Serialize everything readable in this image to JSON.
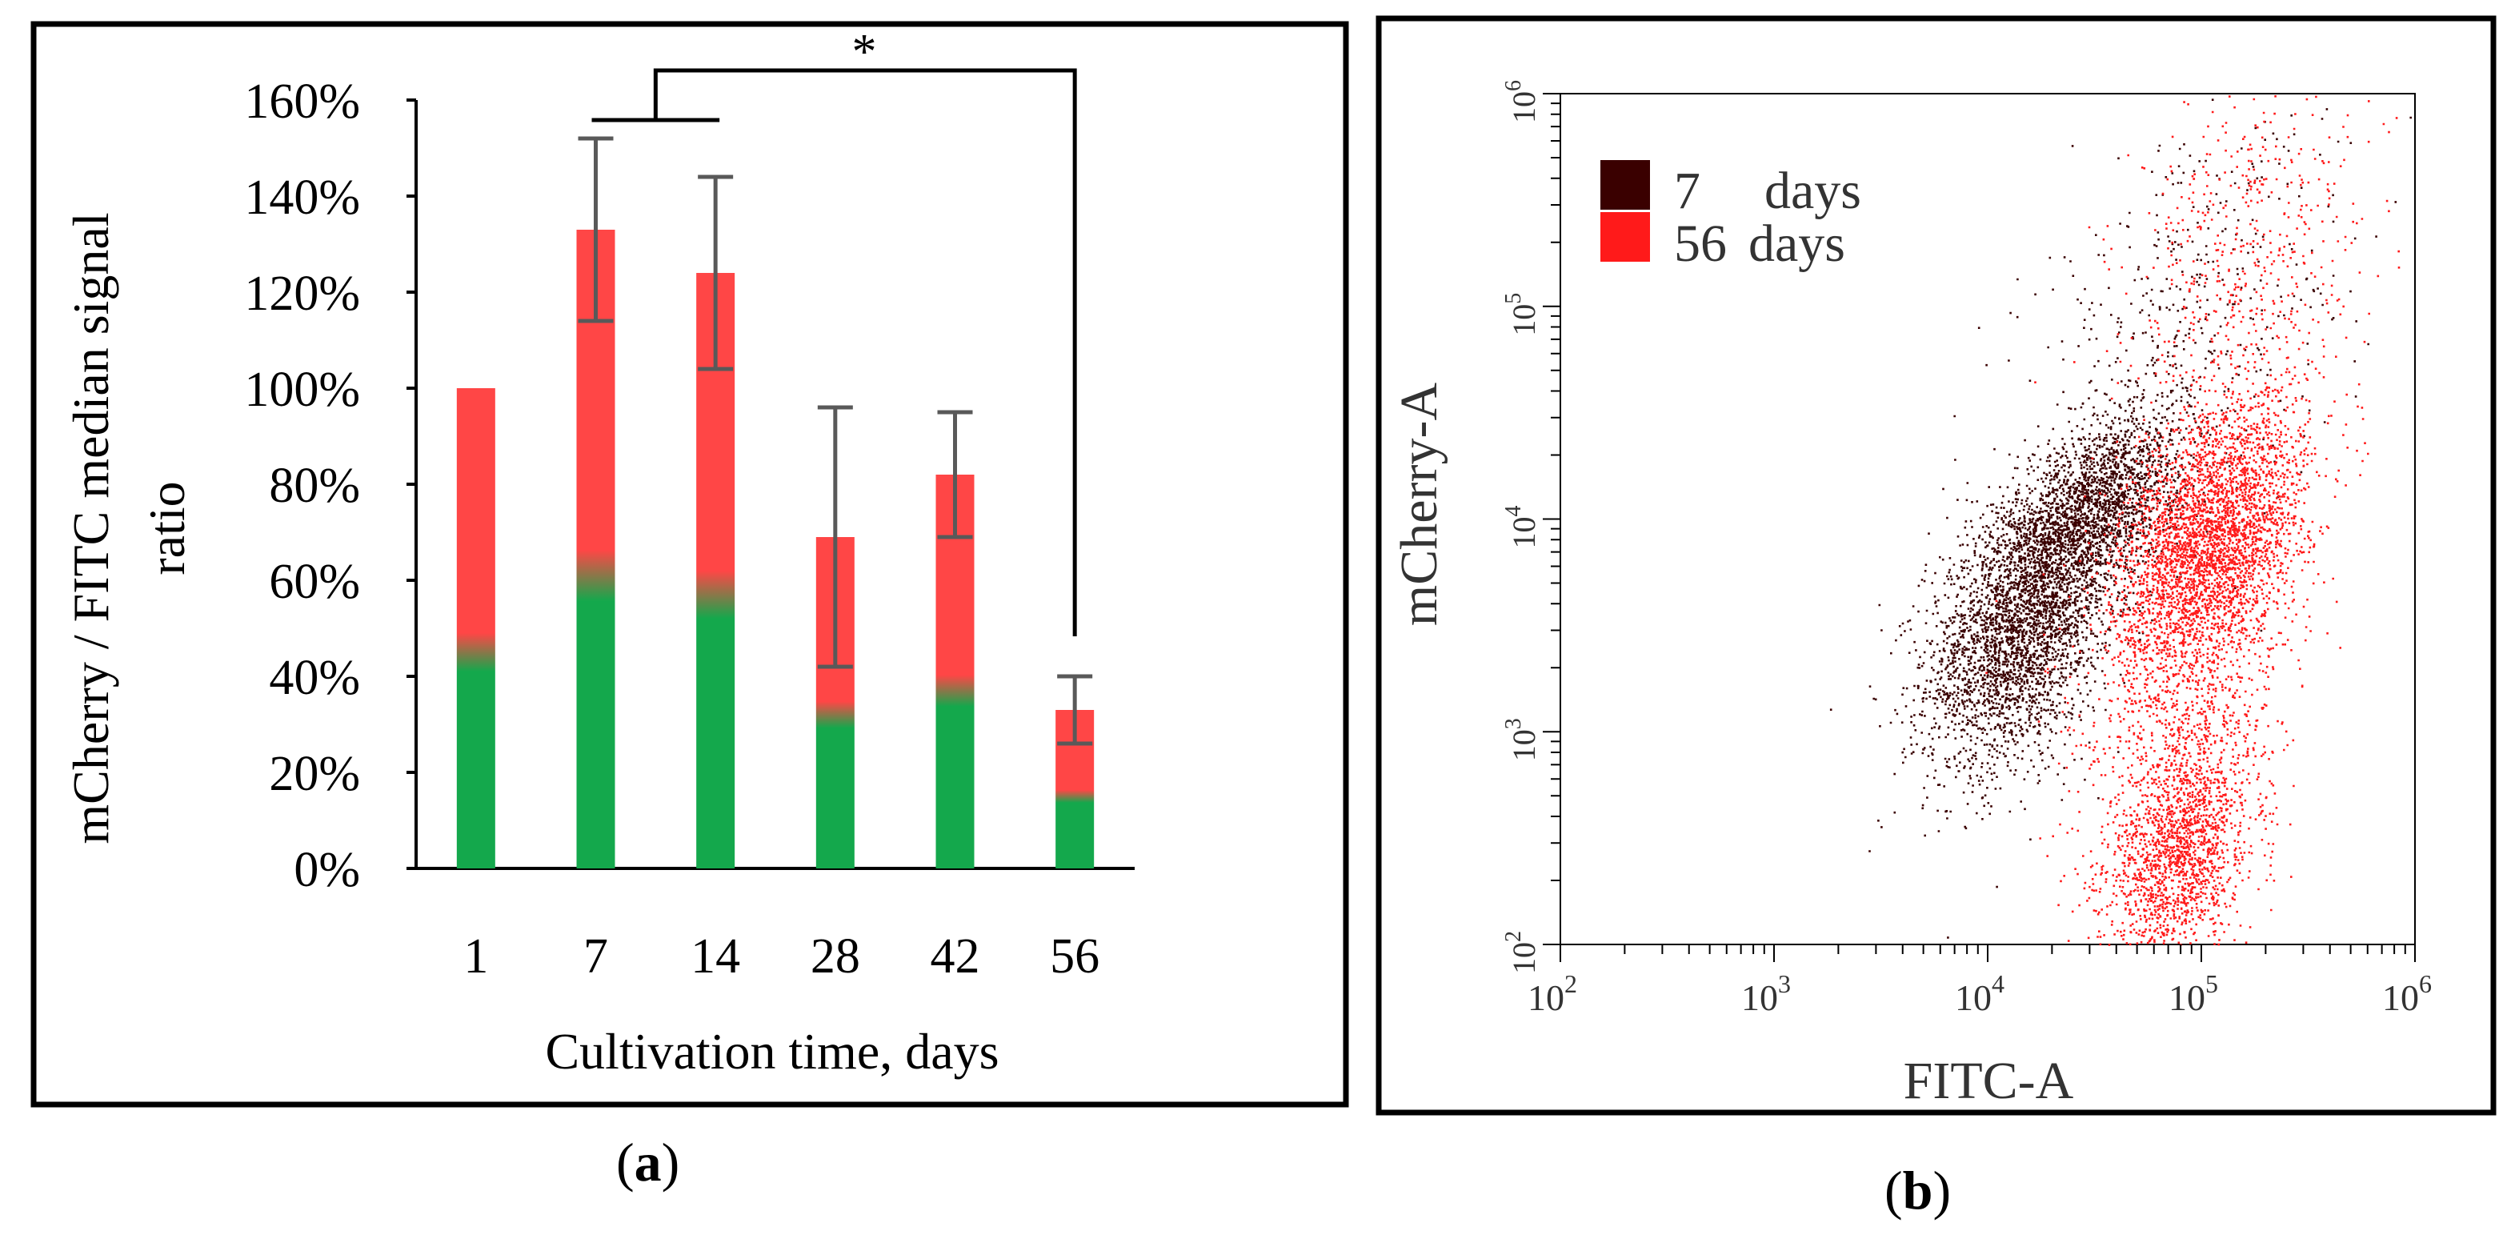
{
  "panel_a": {
    "caption_open": "(",
    "caption_letter": "a",
    "caption_close": ")",
    "significance_marker": "*"
  },
  "panel_b": {
    "caption_open": "(",
    "caption_letter": "b",
    "caption_close": ")"
  },
  "colors": {
    "bar_red": "#ff4646",
    "bar_green": "#14a84c",
    "error_bar": "#595959",
    "series_7_days": "#3a0000",
    "series_56_days": "#ff1a1a",
    "frame": "#000000",
    "axis_text": "#333333"
  },
  "chart_data": [
    {
      "type": "bar",
      "subtype": "stacked",
      "xlabel": "Cultivation time, days",
      "ylabel": "mCherry / FITC median signal ratio",
      "ylabel_lines": [
        "mCherry / FITC median signal",
        "ratio"
      ],
      "categories": [
        "1",
        "7",
        "14",
        "28",
        "42",
        "56"
      ],
      "series": [
        {
          "name": "green",
          "values": [
            45,
            61,
            57,
            32,
            37,
            15
          ]
        },
        {
          "name": "red",
          "values": [
            55,
            72,
            67,
            37,
            45,
            18
          ]
        }
      ],
      "totals": [
        100,
        133,
        124,
        69,
        82,
        33
      ],
      "error_bars": [
        0,
        19,
        20,
        27,
        13,
        7
      ],
      "ylim": [
        0,
        160
      ],
      "yticks": [
        0,
        20,
        40,
        60,
        80,
        100,
        120,
        140,
        160
      ],
      "ytick_labels": [
        "0%",
        "20%",
        "40%",
        "60%",
        "80%",
        "100%",
        "120%",
        "140%",
        "160%"
      ],
      "significance": {
        "marker": "*",
        "from": [
          "7",
          "14"
        ],
        "to": "56"
      },
      "grid": false,
      "legend": "none"
    },
    {
      "type": "scatter",
      "xlabel": "FITC-A",
      "ylabel": "mCherry-A",
      "xscale": "log",
      "yscale": "log",
      "xlim": [
        100,
        1000000
      ],
      "ylim": [
        100,
        1000000
      ],
      "xtick_labels": [
        {
          "base": "10",
          "exp": "2"
        },
        {
          "base": "10",
          "exp": "3"
        },
        {
          "base": "10",
          "exp": "4"
        },
        {
          "base": "10",
          "exp": "5"
        },
        {
          "base": "10",
          "exp": "6"
        }
      ],
      "ytick_labels": [
        {
          "base": "10",
          "exp": "2"
        },
        {
          "base": "10",
          "exp": "3"
        },
        {
          "base": "10",
          "exp": "4"
        },
        {
          "base": "10",
          "exp": "5"
        },
        {
          "base": "10",
          "exp": "6"
        }
      ],
      "legend": "top-left",
      "series": [
        {
          "name": "7 days",
          "label_number": "7",
          "label_unit": "days",
          "clusters": [
            {
              "center_log": [
                4.15,
                3.5
              ],
              "spread_log": [
                0.22,
                0.3
              ],
              "points": 3200
            },
            {
              "center_log": [
                4.5,
                4.05
              ],
              "spread_log": [
                0.2,
                0.2
              ],
              "points": 2000
            },
            {
              "center_log": [
                4.9,
                4.9
              ],
              "spread_log": [
                0.38,
                0.48
              ],
              "points": 500
            }
          ]
        },
        {
          "name": "56 days",
          "label_number": "56",
          "label_unit": "days",
          "clusters": [
            {
              "center_log": [
                5.05,
                3.9
              ],
              "spread_log": [
                0.22,
                0.3
              ],
              "points": 3400
            },
            {
              "center_log": [
                4.9,
                2.45
              ],
              "spread_log": [
                0.17,
                0.28
              ],
              "points": 1800
            },
            {
              "center_log": [
                5.2,
                5.2
              ],
              "spread_log": [
                0.28,
                0.5
              ],
              "points": 600
            },
            {
              "center_log": [
                4.9,
                3.2
              ],
              "spread_log": [
                0.25,
                0.45
              ],
              "points": 800
            }
          ]
        }
      ]
    }
  ]
}
